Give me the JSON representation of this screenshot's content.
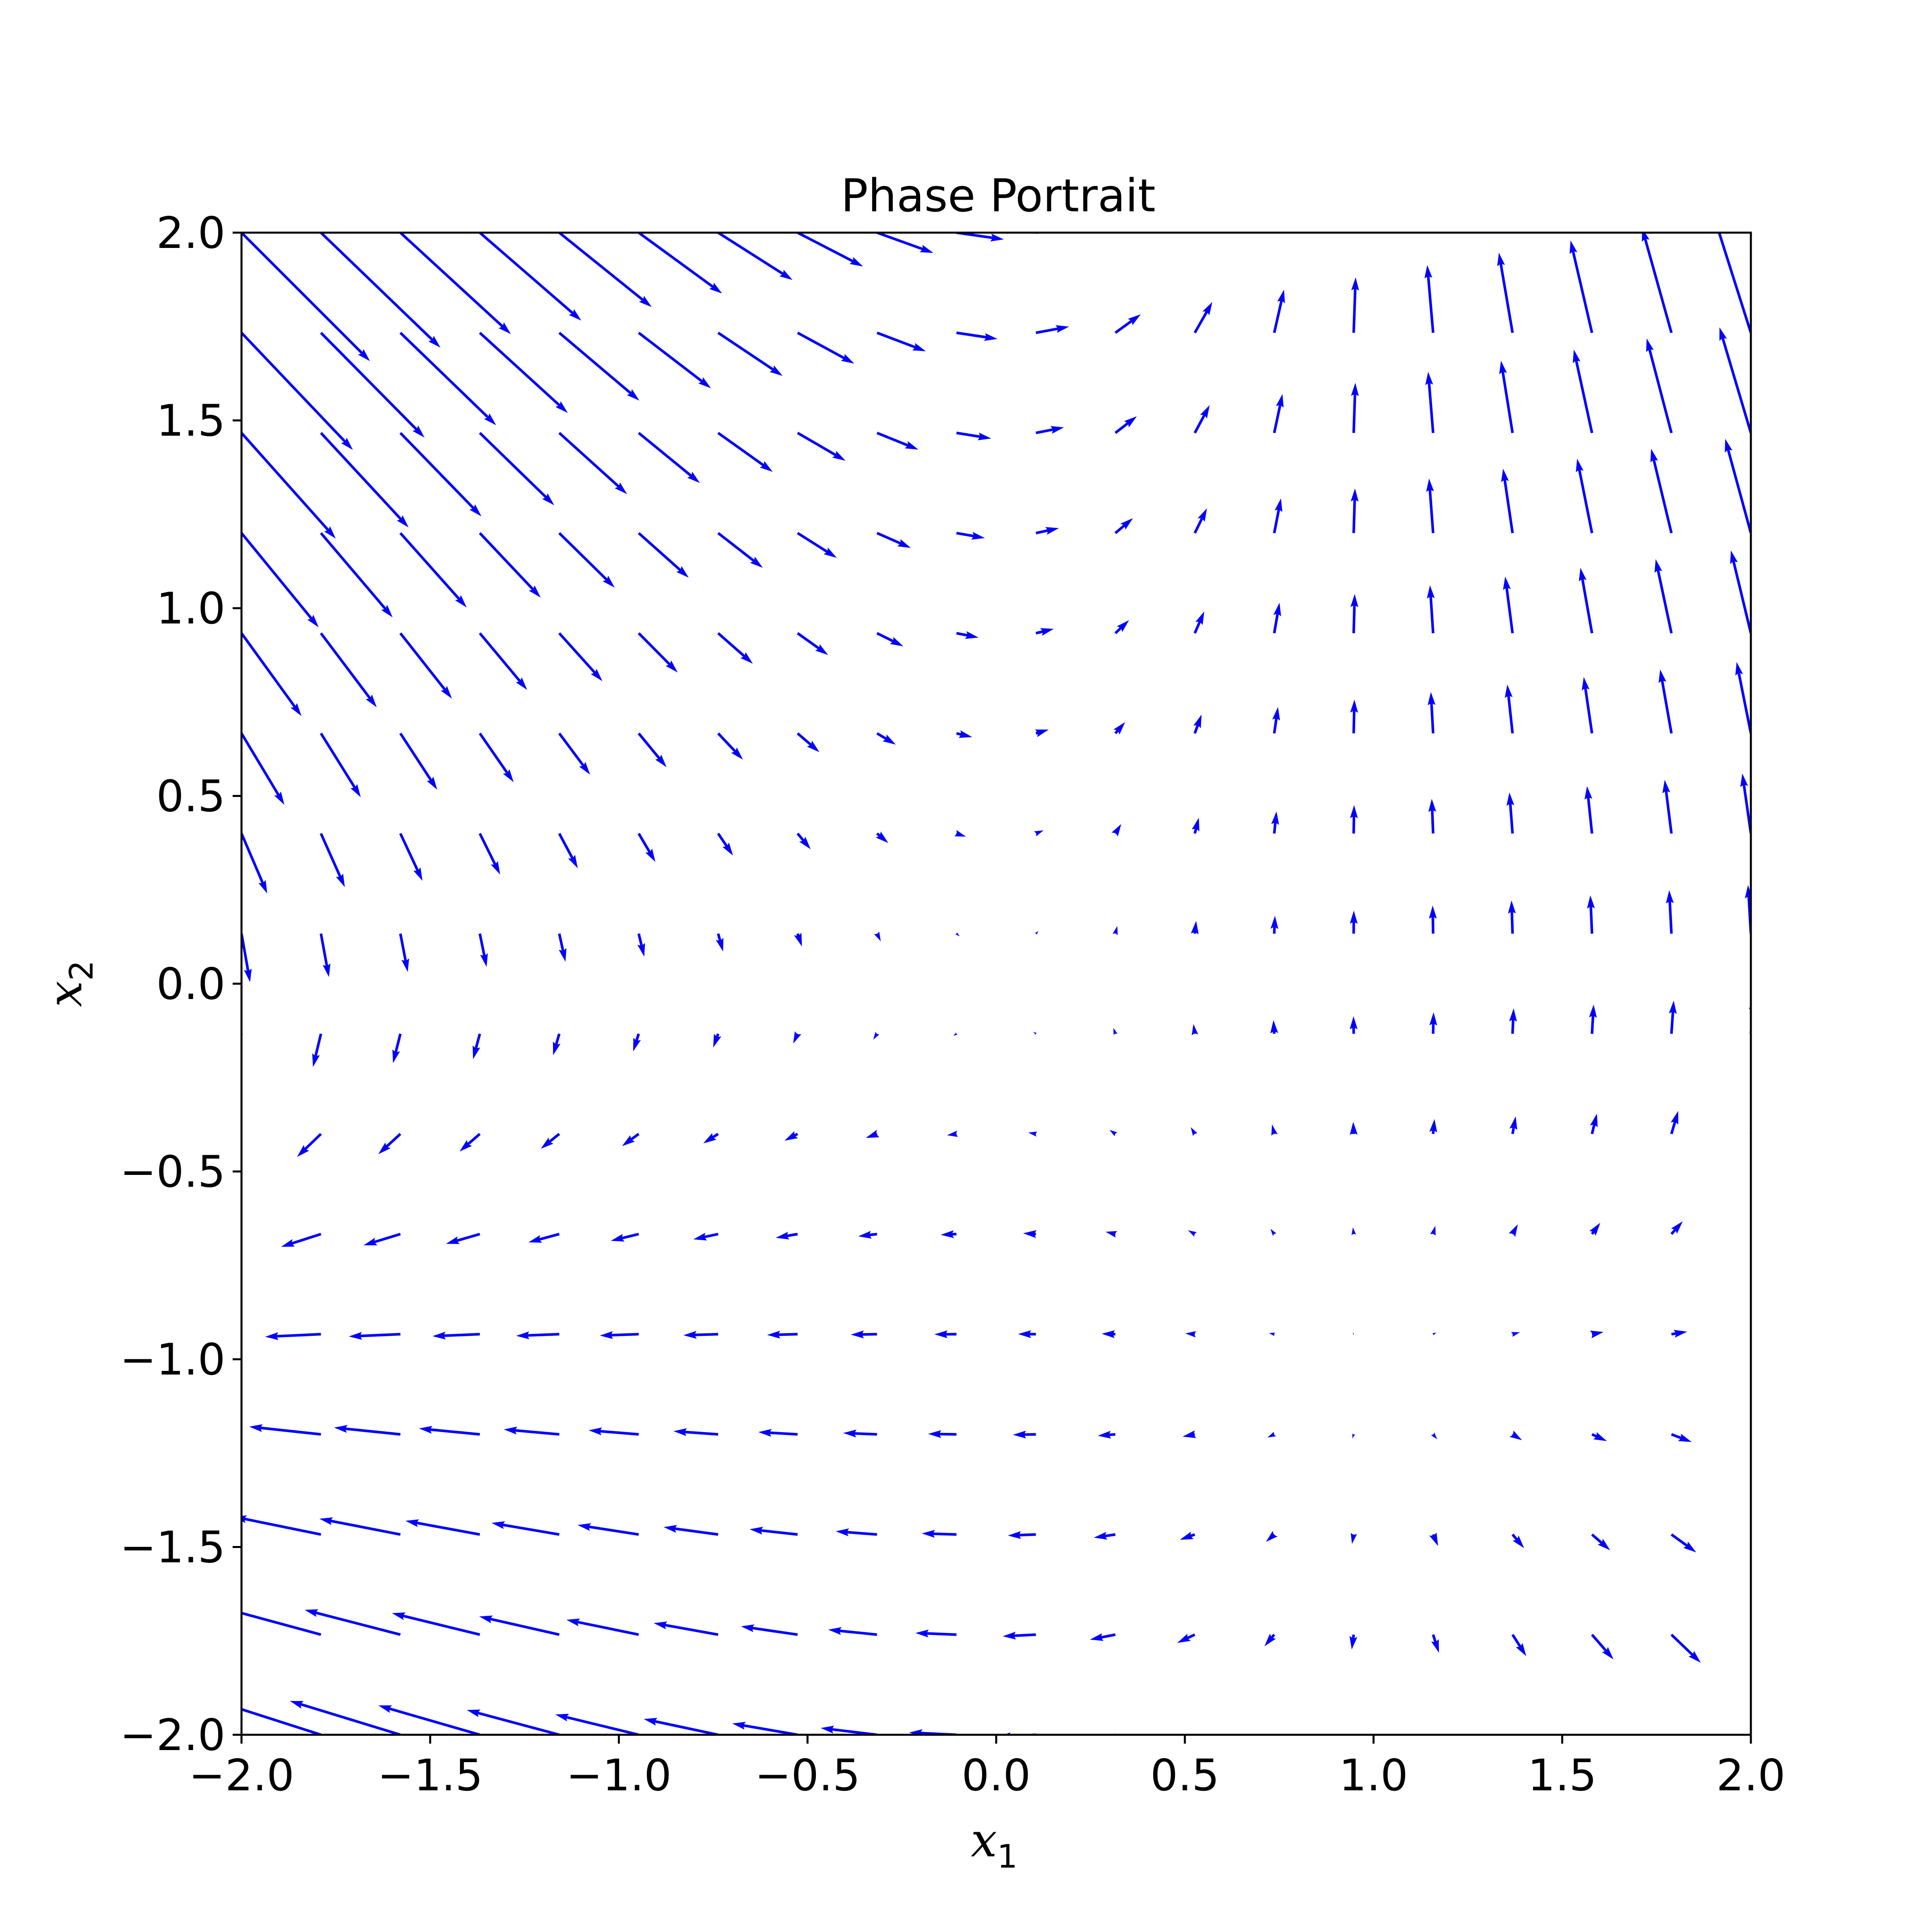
{
  "chart_data": {
    "type": "quiver",
    "title": "Phase Portrait",
    "xlabel": {
      "base": "x",
      "sub": "1"
    },
    "ylabel": {
      "base": "x",
      "sub": "2"
    },
    "xlim": [
      -2.0,
      2.0
    ],
    "ylim": [
      -2.0,
      2.0
    ],
    "xticks": [
      -2.0,
      -1.5,
      -1.0,
      -0.5,
      0.0,
      0.5,
      1.0,
      1.5,
      2.0
    ],
    "xtick_labels": [
      "−2.0",
      "−1.5",
      "−1.0",
      "−0.5",
      "0.0",
      "0.5",
      "1.0",
      "1.5",
      "2.0"
    ],
    "yticks": [
      -2.0,
      -1.5,
      -1.0,
      -0.5,
      0.0,
      0.5,
      1.0,
      1.5,
      2.0
    ],
    "ytick_labels": [
      "−2.0",
      "−1.5",
      "−1.0",
      "−0.5",
      "0.0",
      "0.5",
      "1.0",
      "1.5",
      "2.0"
    ],
    "grid": false,
    "arrow_color": "#0000ff",
    "grid_points": {
      "x_start": -2.0,
      "x_end": 2.0,
      "x_count": 20,
      "y_start": -2.0,
      "y_end": 2.0,
      "y_count": 16
    },
    "vector_field": {
      "dx1": "x2 - x1*x2",
      "dx2": "x1 + x1*x2"
    }
  }
}
